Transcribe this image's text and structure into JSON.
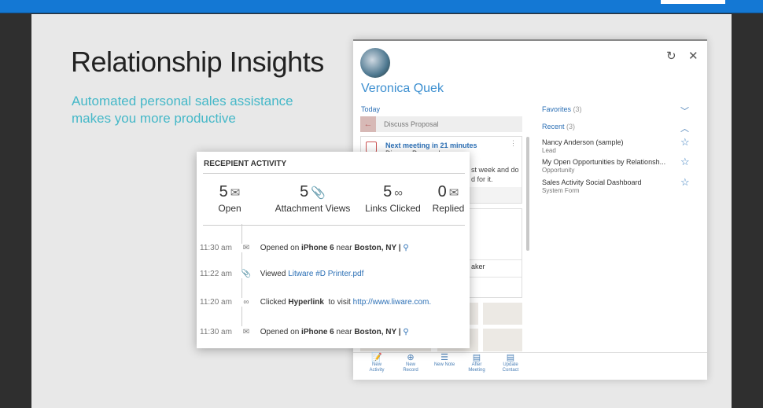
{
  "slide": {
    "title": "Relationship Insights",
    "subtitle_line1": "Automated personal sales assistance",
    "subtitle_line2": "makes you more productive"
  },
  "panel": {
    "name": "Veronica Quek",
    "today_label": "Today",
    "discuss": "Discuss Proposal",
    "meeting": {
      "heading": "Next meeting in 21 minutes",
      "subject": "Discuss Proposal",
      "body1": "st week and do",
      "body2": "d for it."
    },
    "card2_text": "aker",
    "favorites": {
      "label": "Favorites",
      "count": "(3)"
    },
    "recent": {
      "label": "Recent",
      "count": "(3)"
    },
    "recent_items": [
      {
        "title": "Nancy Anderson (sample)",
        "type": "Lead"
      },
      {
        "title": "My Open Opportunities by Relationsh...",
        "type": "Opportunity"
      },
      {
        "title": "Sales Activity Social Dashboard",
        "type": "System Form"
      }
    ],
    "actions": [
      {
        "l1": "New",
        "l2": "Activity",
        "icon": "clipboard-edit-icon"
      },
      {
        "l1": "New",
        "l2": "Record",
        "icon": "plus-circle-icon"
      },
      {
        "l1": "New Note",
        "l2": "",
        "icon": "note-icon"
      },
      {
        "l1": "After",
        "l2": "Meeting",
        "icon": "clipboard-icon"
      },
      {
        "l1": "Update",
        "l2": "Contact",
        "icon": "clipboard-icon"
      }
    ]
  },
  "activity": {
    "header": "RECEPIENT ACTIVITY",
    "stats": [
      {
        "value": "5",
        "label": "Open",
        "icon": "envelope-open-icon"
      },
      {
        "value": "5",
        "label": "Attachment Views",
        "icon": "paperclip-icon"
      },
      {
        "value": "5",
        "label": "Links Clicked",
        "icon": "link-icon"
      },
      {
        "value": "0",
        "label": "Replied",
        "icon": "envelope-reply-icon"
      }
    ],
    "events": [
      {
        "time": "11:30 am",
        "a": "Opened on ",
        "b": "iPhone 6",
        "c": " near ",
        "d": "Boston, NY |"
      },
      {
        "time": "11:22 am",
        "a": "Viewed ",
        "link": "Litware #D Printer.pdf"
      },
      {
        "time": "11:20 am",
        "a": "Clicked ",
        "b": "Hyperlink",
        "c": "  to visit ",
        "link": "http://www.liware.com."
      },
      {
        "time": "11:30 am",
        "a": "Opened on ",
        "b": "iPhone 6",
        "c": " near ",
        "d": "Boston, NY |"
      }
    ]
  }
}
